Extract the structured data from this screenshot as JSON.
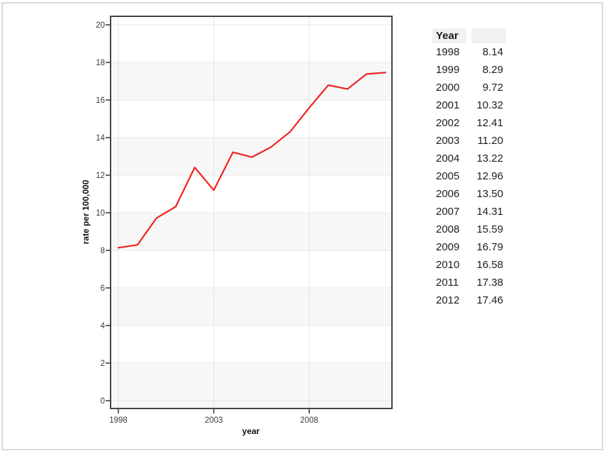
{
  "chart": {
    "xlabel": "year",
    "ylabel": "rate per 100,000"
  },
  "chart_data": {
    "type": "line",
    "x": [
      1998,
      1999,
      2000,
      2001,
      2002,
      2003,
      2004,
      2005,
      2006,
      2007,
      2008,
      2009,
      2010,
      2011,
      2012
    ],
    "series": [
      {
        "name": "rate per 100,000",
        "color": "#f22222",
        "values": [
          8.14,
          8.29,
          9.72,
          10.32,
          12.41,
          11.2,
          13.22,
          12.96,
          13.5,
          14.31,
          15.59,
          16.79,
          16.58,
          17.38,
          17.46
        ]
      }
    ],
    "title": "",
    "xlabel": "year",
    "ylabel": "rate per 100,000",
    "ylim": [
      0,
      20
    ],
    "xlim": [
      1998,
      2012
    ],
    "yticks": [
      0,
      2,
      4,
      6,
      8,
      10,
      12,
      14,
      16,
      18,
      20
    ],
    "xticks": [
      1998,
      2003,
      2008
    ],
    "grid": true,
    "legend": "none",
    "shaded_bands": [
      [
        0,
        2
      ],
      [
        4,
        6
      ],
      [
        8,
        10
      ],
      [
        12,
        14
      ],
      [
        16,
        18
      ]
    ],
    "colors": {
      "line": "#f22222",
      "band": "#f7f7f7",
      "grid": "#e7e7e7",
      "panel_border": "#454545",
      "tick": "#333333",
      "tick_label": "#3d3d3d",
      "frame_border": "#d9d9d9",
      "header_bg": "#f1f1f1"
    }
  },
  "table": {
    "header": [
      "Year",
      ""
    ],
    "rows": [
      [
        "1998",
        "8.14"
      ],
      [
        "1999",
        "8.29"
      ],
      [
        "2000",
        "9.72"
      ],
      [
        "2001",
        "10.32"
      ],
      [
        "2002",
        "12.41"
      ],
      [
        "2003",
        "11.20"
      ],
      [
        "2004",
        "13.22"
      ],
      [
        "2005",
        "12.96"
      ],
      [
        "2006",
        "13.50"
      ],
      [
        "2007",
        "14.31"
      ],
      [
        "2008",
        "15.59"
      ],
      [
        "2009",
        "16.79"
      ],
      [
        "2010",
        "16.58"
      ],
      [
        "2011",
        "17.38"
      ],
      [
        "2012",
        "17.46"
      ]
    ]
  }
}
